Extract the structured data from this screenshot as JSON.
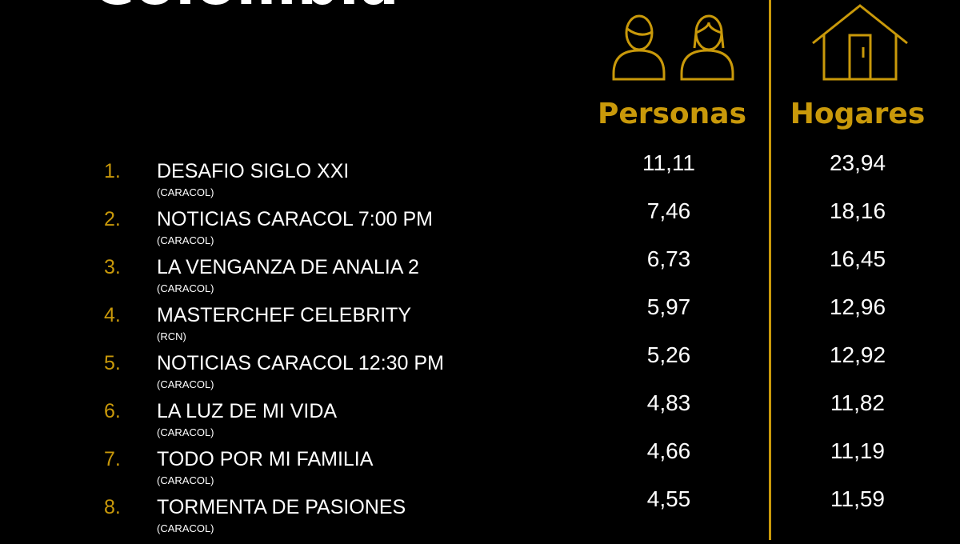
{
  "title": "Colombia",
  "accent_color": "#c9990a",
  "columns": {
    "personas": {
      "label": "Personas",
      "icon": "persons-icon"
    },
    "hogares": {
      "label": "Hogares",
      "icon": "house-icon"
    }
  },
  "rows": [
    {
      "rank": "1.",
      "name": "DESAFIO SIGLO XXI",
      "channel": "(CARACOL)",
      "personas": "11,11",
      "hogares": "23,94"
    },
    {
      "rank": "2.",
      "name": "NOTICIAS CARACOL 7:00 PM",
      "channel": "(CARACOL)",
      "personas": "7,46",
      "hogares": "18,16"
    },
    {
      "rank": "3.",
      "name": "LA VENGANZA DE ANALIA 2",
      "channel": "(CARACOL)",
      "personas": "6,73",
      "hogares": "16,45"
    },
    {
      "rank": "4.",
      "name": "MASTERCHEF CELEBRITY",
      "channel": "(RCN)",
      "personas": "5,97",
      "hogares": "12,96"
    },
    {
      "rank": "5.",
      "name": "NOTICIAS CARACOL 12:30 PM",
      "channel": "(CARACOL)",
      "personas": "5,26",
      "hogares": "12,92"
    },
    {
      "rank": "6.",
      "name": "LA LUZ DE MI VIDA",
      "channel": "(CARACOL)",
      "personas": "4,83",
      "hogares": "11,82"
    },
    {
      "rank": "7.",
      "name": "TODO POR MI FAMILIA",
      "channel": "(CARACOL)",
      "personas": "4,66",
      "hogares": "11,19"
    },
    {
      "rank": "8.",
      "name": "TORMENTA DE PASIONES",
      "channel": "(CARACOL)",
      "personas": "4,55",
      "hogares": "11,59"
    }
  ]
}
